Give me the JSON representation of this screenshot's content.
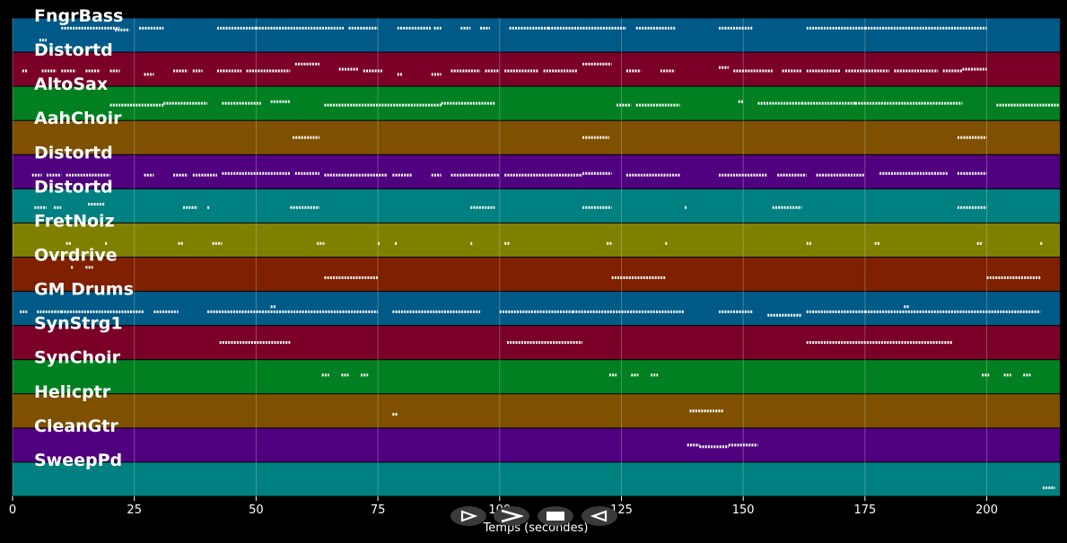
{
  "chart_data": {
    "type": "piano-roll",
    "xlabel": "Temps (secondes)",
    "xlim": [
      0,
      215
    ],
    "xticks": [
      0,
      25,
      50,
      75,
      100,
      125,
      150,
      175,
      200
    ],
    "grid": true,
    "tracks": [
      {
        "name": "FngrBass",
        "color": "#005a87",
        "segments": [
          [
            5.5,
            7,
            0.65
          ],
          [
            10,
            22,
            0.3
          ],
          [
            21,
            24,
            0.35
          ],
          [
            26,
            31,
            0.3
          ],
          [
            42,
            50,
            0.3
          ],
          [
            50,
            68,
            0.3
          ],
          [
            69,
            75,
            0.3
          ],
          [
            79,
            86,
            0.3
          ],
          [
            86.5,
            88,
            0.3
          ],
          [
            92,
            94,
            0.3
          ],
          [
            96,
            98,
            0.3
          ],
          [
            102,
            110,
            0.3
          ],
          [
            110,
            126,
            0.3
          ],
          [
            128,
            136,
            0.3
          ],
          [
            145,
            152,
            0.3
          ],
          [
            163,
            175,
            0.3
          ],
          [
            175,
            200,
            0.3
          ]
        ]
      },
      {
        "name": "Distortd",
        "color": "#7a0028",
        "segments": [
          [
            2,
            3,
            0.55
          ],
          [
            6,
            9,
            0.55
          ],
          [
            10,
            13,
            0.55
          ],
          [
            15,
            18,
            0.55
          ],
          [
            20,
            22,
            0.55
          ],
          [
            27,
            29,
            0.65
          ],
          [
            33,
            36,
            0.55
          ],
          [
            37,
            39,
            0.55
          ],
          [
            42,
            47,
            0.55
          ],
          [
            48,
            57,
            0.55
          ],
          [
            58,
            63,
            0.35
          ],
          [
            67,
            71,
            0.5
          ],
          [
            72,
            76,
            0.55
          ],
          [
            79,
            80,
            0.65
          ],
          [
            86,
            88,
            0.65
          ],
          [
            90,
            96,
            0.55
          ],
          [
            97,
            100,
            0.55
          ],
          [
            101,
            108,
            0.55
          ],
          [
            109,
            116,
            0.55
          ],
          [
            117,
            123,
            0.35
          ],
          [
            126,
            129,
            0.55
          ],
          [
            133,
            136,
            0.55
          ],
          [
            145,
            147,
            0.45
          ],
          [
            148,
            156,
            0.55
          ],
          [
            158,
            162,
            0.55
          ],
          [
            163,
            170,
            0.55
          ],
          [
            171,
            180,
            0.55
          ],
          [
            181,
            190,
            0.55
          ],
          [
            191,
            195,
            0.55
          ],
          [
            195,
            200,
            0.5
          ]
        ]
      },
      {
        "name": "AltoSax",
        "color": "#008020",
        "segments": [
          [
            20,
            31,
            0.55
          ],
          [
            31,
            40,
            0.5
          ],
          [
            43,
            51,
            0.5
          ],
          [
            53,
            57,
            0.45
          ],
          [
            64,
            80,
            0.55
          ],
          [
            80,
            88,
            0.55
          ],
          [
            88,
            99,
            0.5
          ],
          [
            124,
            127,
            0.55
          ],
          [
            128,
            137,
            0.55
          ],
          [
            149,
            150,
            0.45
          ],
          [
            153,
            162,
            0.5
          ],
          [
            162,
            173,
            0.5
          ],
          [
            173,
            195,
            0.5
          ],
          [
            202,
            215,
            0.55
          ]
        ]
      },
      {
        "name": "AahChoir",
        "color": "#7f5000",
        "segments": [
          [
            57.5,
            63,
            0.5
          ],
          [
            117,
            122.5,
            0.5
          ],
          [
            194,
            200,
            0.5
          ]
        ]
      },
      {
        "name": "Distortd",
        "color": "#50007f",
        "segments": [
          [
            4,
            6,
            0.6
          ],
          [
            7,
            10,
            0.6
          ],
          [
            11,
            20,
            0.6
          ],
          [
            27,
            29,
            0.6
          ],
          [
            33,
            36,
            0.6
          ],
          [
            37,
            42,
            0.6
          ],
          [
            43,
            57,
            0.55
          ],
          [
            58,
            63,
            0.55
          ],
          [
            64,
            77,
            0.6
          ],
          [
            78,
            82,
            0.6
          ],
          [
            86,
            88,
            0.6
          ],
          [
            90,
            100,
            0.6
          ],
          [
            101,
            117,
            0.6
          ],
          [
            117,
            123,
            0.55
          ],
          [
            126,
            137,
            0.6
          ],
          [
            145,
            155,
            0.6
          ],
          [
            157,
            163,
            0.6
          ],
          [
            165,
            175,
            0.6
          ],
          [
            178,
            192,
            0.55
          ],
          [
            194,
            200,
            0.55
          ]
        ]
      },
      {
        "name": "Distortd",
        "color": "#008080",
        "segments": [
          [
            4.5,
            7,
            0.55
          ],
          [
            8.5,
            10,
            0.55
          ],
          [
            15.5,
            19,
            0.45
          ],
          [
            35,
            38,
            0.55
          ],
          [
            40,
            40.5,
            0.55
          ],
          [
            57,
            63,
            0.55
          ],
          [
            94,
            99,
            0.55
          ],
          [
            117,
            123,
            0.55
          ],
          [
            138,
            138.5,
            0.55
          ],
          [
            156,
            162,
            0.55
          ],
          [
            194,
            200,
            0.55
          ]
        ]
      },
      {
        "name": "FretNoiz",
        "color": "#808000",
        "segments": [
          [
            11,
            12,
            0.6
          ],
          [
            19,
            19.5,
            0.6
          ],
          [
            34,
            35,
            0.6
          ],
          [
            41,
            43,
            0.6
          ],
          [
            62.5,
            64,
            0.6
          ],
          [
            75,
            75.5,
            0.6
          ],
          [
            78.5,
            79,
            0.6
          ],
          [
            94,
            94.5,
            0.6
          ],
          [
            101,
            102,
            0.6
          ],
          [
            122,
            123,
            0.6
          ],
          [
            134,
            134.5,
            0.6
          ],
          [
            163,
            164,
            0.6
          ],
          [
            177,
            178,
            0.6
          ],
          [
            198,
            199,
            0.6
          ],
          [
            211,
            211.5,
            0.6
          ]
        ]
      },
      {
        "name": "Ovrdrive",
        "color": "#7f2000",
        "segments": [
          [
            12,
            12.5,
            0.3
          ],
          [
            15,
            16.5,
            0.3
          ],
          [
            64,
            75,
            0.6
          ],
          [
            123,
            134,
            0.6
          ],
          [
            200,
            211,
            0.6
          ]
        ]
      },
      {
        "name": "GM Drums",
        "color": "#005a87",
        "segments": [
          [
            1.5,
            3,
            0.6
          ],
          [
            5,
            10,
            0.6
          ],
          [
            10,
            20,
            0.6
          ],
          [
            20,
            27,
            0.6
          ],
          [
            29,
            34,
            0.6
          ],
          [
            40,
            75,
            0.6
          ],
          [
            53,
            54,
            0.45
          ],
          [
            78,
            96,
            0.6
          ],
          [
            100,
            115,
            0.6
          ],
          [
            115,
            138,
            0.6
          ],
          [
            145,
            152,
            0.6
          ],
          [
            155,
            162,
            0.7
          ],
          [
            163,
            175,
            0.6
          ],
          [
            175,
            211,
            0.6
          ],
          [
            183,
            184,
            0.45
          ]
        ]
      },
      {
        "name": "SynStrg1",
        "color": "#7a0028",
        "segments": [
          [
            42.5,
            57,
            0.5
          ],
          [
            101.5,
            117,
            0.5
          ],
          [
            163,
            193,
            0.5
          ]
        ]
      },
      {
        "name": "SynChoir",
        "color": "#008020",
        "segments": [
          [
            63.5,
            65,
            0.45
          ],
          [
            67.5,
            69,
            0.45
          ],
          [
            71.5,
            73,
            0.45
          ],
          [
            122.5,
            124,
            0.45
          ],
          [
            127,
            128.5,
            0.45
          ],
          [
            131,
            132.5,
            0.45
          ],
          [
            199,
            200.5,
            0.45
          ],
          [
            203.5,
            205,
            0.45
          ],
          [
            207.5,
            209,
            0.45
          ]
        ]
      },
      {
        "name": "Helicptr",
        "color": "#7f5000",
        "segments": [
          [
            78,
            79,
            0.6
          ],
          [
            139,
            146,
            0.5
          ]
        ]
      },
      {
        "name": "CleanGtr",
        "color": "#50007f",
        "segments": [
          [
            138.5,
            141,
            0.5
          ],
          [
            141,
            147,
            0.55
          ],
          [
            147,
            153,
            0.5
          ]
        ]
      },
      {
        "name": "SweepPd",
        "color": "#008080",
        "segments": [
          [
            211.5,
            214,
            0.75
          ]
        ]
      }
    ]
  },
  "controls": {
    "play": "play-outline-icon",
    "forward": "chevron-right-icon",
    "stop": "stop-icon",
    "rewind": "play-backward-icon"
  }
}
